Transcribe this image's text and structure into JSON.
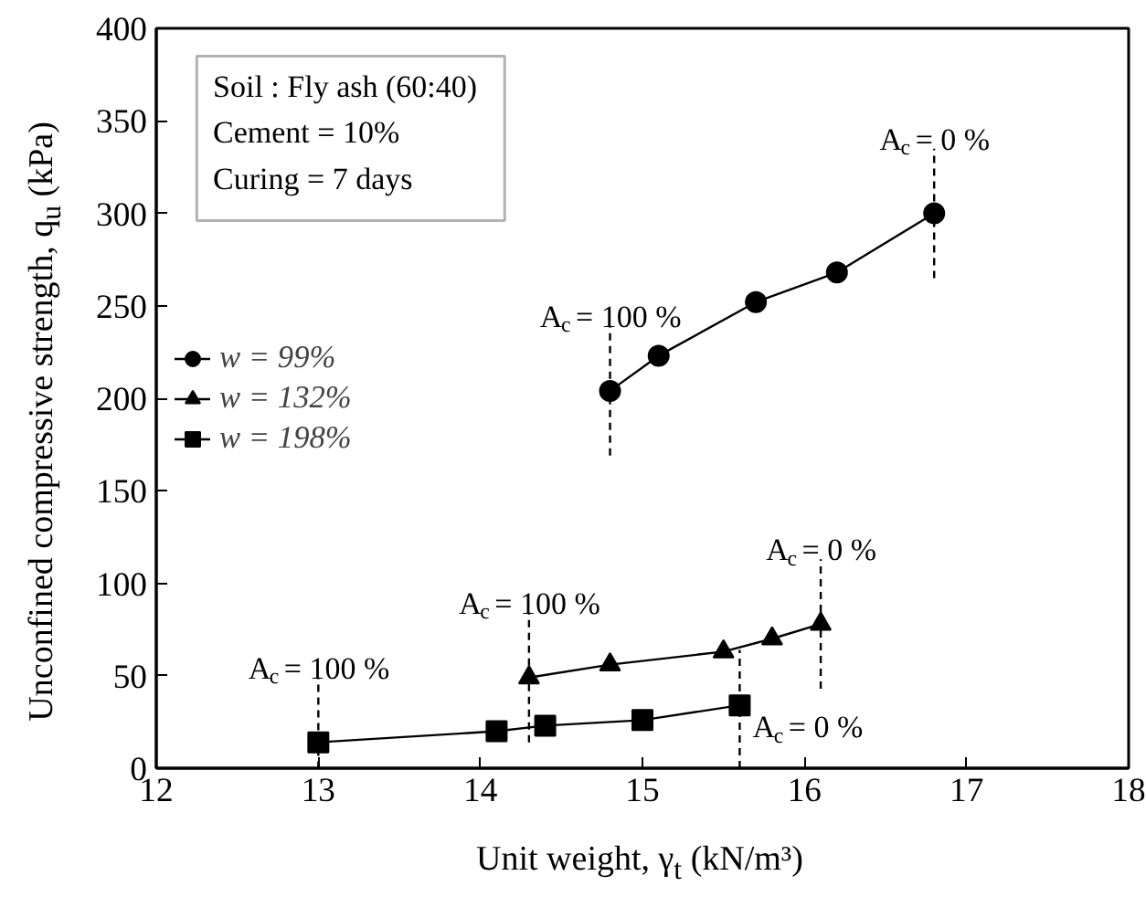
{
  "chart_data": {
    "type": "line",
    "xlabel": "Unit weight, γ$_{t}$ (kN/m³)",
    "ylabel": "Unconfined compressive strength, q$_{u}$ (kPa)",
    "xlim": [
      12,
      18
    ],
    "xticks": [
      12,
      13,
      14,
      15,
      16,
      17,
      18
    ],
    "ylim": [
      0,
      400
    ],
    "yticks": [
      0,
      50,
      100,
      150,
      200,
      250,
      300,
      350,
      400
    ],
    "grid": false,
    "legend": "left",
    "line_style": "solid",
    "series": [
      {
        "name": "w = 99%",
        "color": "#000000",
        "marker": "circle",
        "x": [
          14.8,
          15.1,
          15.7,
          16.2,
          16.8
        ],
        "values": [
          204,
          223,
          252,
          268,
          300
        ]
      },
      {
        "name": "w = 132%",
        "color": "#000000",
        "marker": "triangle",
        "x": [
          14.3,
          14.8,
          15.5,
          15.8,
          16.1
        ],
        "values": [
          49,
          56,
          63,
          70,
          78
        ]
      },
      {
        "name": "w = 198%",
        "color": "#000000",
        "marker": "square",
        "x": [
          13.0,
          14.1,
          14.4,
          15.0,
          15.6
        ],
        "values": [
          14,
          20,
          23,
          26,
          34
        ]
      }
    ],
    "annotations": [
      "Soil : Fly ash (60:40)",
      "Cement = 10%",
      "Curing = 7 days",
      {
        "text": "A$_{c}$ = 100 %",
        "x": 14.8,
        "y": 204
      },
      {
        "text": "A$_{c}$ = 0 %",
        "x": 16.8,
        "y": 300
      },
      {
        "text": "A$_{c}$ = 100 %",
        "x": 14.3,
        "y": 49
      },
      {
        "text": "A$_{c}$ = 0 %",
        "x": 16.1,
        "y": 78
      },
      {
        "text": "A$_{c}$ = 100 %",
        "x": 13.0,
        "y": 14
      },
      {
        "text": "A$_{c}$ = 0 %",
        "x": 15.6,
        "y": 34
      }
    ]
  }
}
